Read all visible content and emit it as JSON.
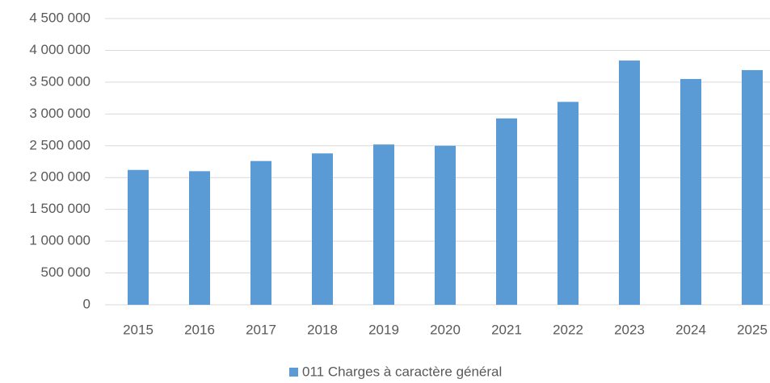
{
  "chart_data": {
    "type": "bar",
    "categories": [
      "2015",
      "2016",
      "2017",
      "2018",
      "2019",
      "2020",
      "2021",
      "2022",
      "2023",
      "2024",
      "2025"
    ],
    "series": [
      {
        "name": "011 Charges à caractère général",
        "color": "#5b9bd5",
        "values": [
          2120000,
          2100000,
          2260000,
          2380000,
          2520000,
          2500000,
          2930000,
          3190000,
          3840000,
          3550000,
          3690000
        ]
      }
    ],
    "ylim": [
      0,
      4500000
    ],
    "yticks": [
      0,
      {
        "value": 500000,
        "label": "500 000"
      },
      {
        "value": 1000000,
        "label": "1 000 000"
      },
      {
        "value": 1500000,
        "label": "1 500 000"
      },
      {
        "value": 2000000,
        "label": "2 000 000"
      },
      {
        "value": 2500000,
        "label": "2 500 000"
      },
      {
        "value": 3000000,
        "label": "3 000 000"
      },
      {
        "value": 3500000,
        "label": "3 500 000"
      },
      {
        "value": 4000000,
        "label": "4 000 000"
      },
      {
        "value": 4500000,
        "label": "4 500 000"
      }
    ],
    "grid": true,
    "legend": "bottom"
  }
}
